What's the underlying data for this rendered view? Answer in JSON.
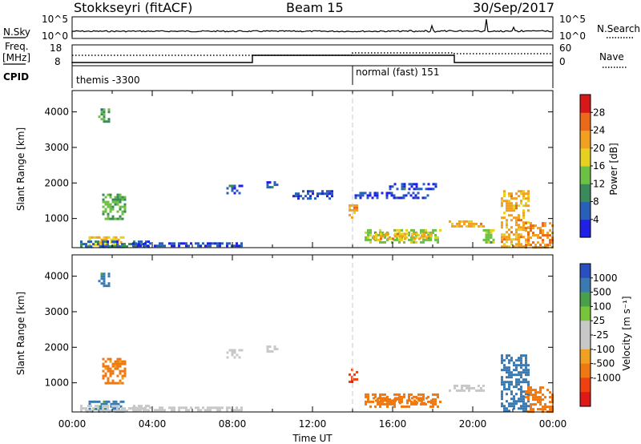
{
  "header": {
    "station": "Stokkseyri (fitACF)",
    "beam": "Beam 15",
    "date": "30/Sep/2017"
  },
  "top_panels": {
    "nsky": {
      "label": "N.Sky",
      "left_ticks": [
        "10^5",
        "10^0"
      ],
      "right_ticks": [
        "10^5",
        "10^0"
      ],
      "right_label": "N.Search"
    },
    "freq": {
      "label_lines": [
        "Freq.",
        "[MHz]"
      ],
      "left_ticks": [
        "18",
        "8"
      ],
      "right_ticks": [
        "60",
        "0"
      ],
      "right_label": "Nave"
    },
    "cpid": {
      "label": "CPID",
      "programs": [
        {
          "name": "themis -3300",
          "start_hour": 0
        },
        {
          "name": "normal (fast) 151",
          "start_hour": 14
        }
      ]
    }
  },
  "colors": {
    "power_scale": [
      "#1f1fe6",
      "#2860b8",
      "#3a8a5a",
      "#6cc043",
      "#e6d020",
      "#f2a020",
      "#ea6a1a",
      "#d81818"
    ],
    "velocity_scale": [
      "#e01818",
      "#f04010",
      "#f07810",
      "#f2a020",
      "#c8c8c8",
      "#c8c8c8",
      "#78c43a",
      "#48a04a",
      "#3a7ab0",
      "#2850c0"
    ]
  },
  "chart_data": [
    {
      "type": "heatmap",
      "quantity": "power",
      "xlabel": "",
      "ylabel": "Slant Range [km]",
      "xlim": [
        0,
        24
      ],
      "ylim": [
        180,
        4600
      ],
      "yticks": [
        "1000",
        "2000",
        "3000",
        "4000"
      ],
      "colorbar": {
        "label": "Power [dB]",
        "ticks": [
          "4",
          "8",
          "12",
          "16",
          "20",
          "24",
          "28"
        ],
        "range": [
          0,
          30
        ]
      },
      "regions": [
        {
          "t": [
            0.7,
            2.6
          ],
          "r": [
            200,
            500
          ],
          "v": 18
        },
        {
          "t": [
            0.4,
            3.8
          ],
          "r": [
            200,
            380
          ],
          "v": 6
        },
        {
          "t": [
            1.5,
            2.6
          ],
          "r": [
            1000,
            1700
          ],
          "v": 12
        },
        {
          "t": [
            1.3,
            1.8
          ],
          "r": [
            3700,
            4100
          ],
          "v": 10
        },
        {
          "t": [
            3.0,
            8.5
          ],
          "r": [
            200,
            330
          ],
          "v": 4
        },
        {
          "t": [
            7.7,
            8.5
          ],
          "r": [
            1700,
            1950
          ],
          "v": 5
        },
        {
          "t": [
            9.7,
            10.3
          ],
          "r": [
            1850,
            2050
          ],
          "v": 5
        },
        {
          "t": [
            11.0,
            13.0
          ],
          "r": [
            1550,
            1800
          ],
          "v": 4
        },
        {
          "t": [
            13.8,
            14.2
          ],
          "r": [
            1000,
            1400
          ],
          "v": 20
        },
        {
          "t": [
            14.1,
            17.9
          ],
          "r": [
            1550,
            1750
          ],
          "v": 4
        },
        {
          "t": [
            14.6,
            18.4
          ],
          "r": [
            300,
            700
          ],
          "v": 14
        },
        {
          "t": [
            15.0,
            18.0
          ],
          "r": [
            400,
            600
          ],
          "v": 20
        },
        {
          "t": [
            15.7,
            18.2
          ],
          "r": [
            1800,
            2000
          ],
          "v": 5
        },
        {
          "t": [
            18.8,
            20.5
          ],
          "r": [
            750,
            950
          ],
          "v": 20
        },
        {
          "t": [
            20.5,
            21.0
          ],
          "r": [
            300,
            700
          ],
          "v": 14
        },
        {
          "t": [
            21.4,
            22.8
          ],
          "r": [
            200,
            1800
          ],
          "v": 20
        },
        {
          "t": [
            22.6,
            24.0
          ],
          "r": [
            200,
            900
          ],
          "v": 22
        }
      ]
    },
    {
      "type": "heatmap",
      "quantity": "velocity",
      "xlabel": "Time UT",
      "ylabel": "Slant Range [km]",
      "xlim": [
        0,
        24
      ],
      "ylim": [
        180,
        4600
      ],
      "xticks": [
        "00:00",
        "04:00",
        "08:00",
        "12:00",
        "16:00",
        "20:00",
        "00:00"
      ],
      "yticks": [
        "1000",
        "2000",
        "3000",
        "4000"
      ],
      "colorbar": {
        "label": "Velocity [m s⁻¹]",
        "ticks": [
          "1000",
          "500",
          "100",
          "25",
          "-25",
          "-100",
          "-500",
          "-1000"
        ]
      },
      "regions": [
        {
          "t": [
            0.7,
            2.6
          ],
          "r": [
            200,
            500
          ],
          "v": 150
        },
        {
          "t": [
            0.4,
            3.8
          ],
          "r": [
            200,
            380
          ],
          "v": 0
        },
        {
          "t": [
            1.5,
            2.6
          ],
          "r": [
            1000,
            1700
          ],
          "v": -150
        },
        {
          "t": [
            1.3,
            1.8
          ],
          "r": [
            3700,
            4100
          ],
          "v": 150
        },
        {
          "t": [
            3.0,
            8.5
          ],
          "r": [
            200,
            330
          ],
          "v": 0
        },
        {
          "t": [
            7.7,
            8.5
          ],
          "r": [
            1700,
            1950
          ],
          "v": 0
        },
        {
          "t": [
            9.7,
            10.3
          ],
          "r": [
            1850,
            2050
          ],
          "v": 0
        },
        {
          "t": [
            13.8,
            14.2
          ],
          "r": [
            1000,
            1400
          ],
          "v": -900
        },
        {
          "t": [
            14.6,
            18.4
          ],
          "r": [
            300,
            700
          ],
          "v": -250
        },
        {
          "t": [
            15.0,
            18.0
          ],
          "r": [
            400,
            600
          ],
          "v": -300
        },
        {
          "t": [
            18.8,
            20.5
          ],
          "r": [
            750,
            950
          ],
          "v": 0
        },
        {
          "t": [
            21.4,
            22.8
          ],
          "r": [
            200,
            1800
          ],
          "v": 300
        },
        {
          "t": [
            22.6,
            24.0
          ],
          "r": [
            200,
            900
          ],
          "v": -200
        }
      ]
    }
  ]
}
